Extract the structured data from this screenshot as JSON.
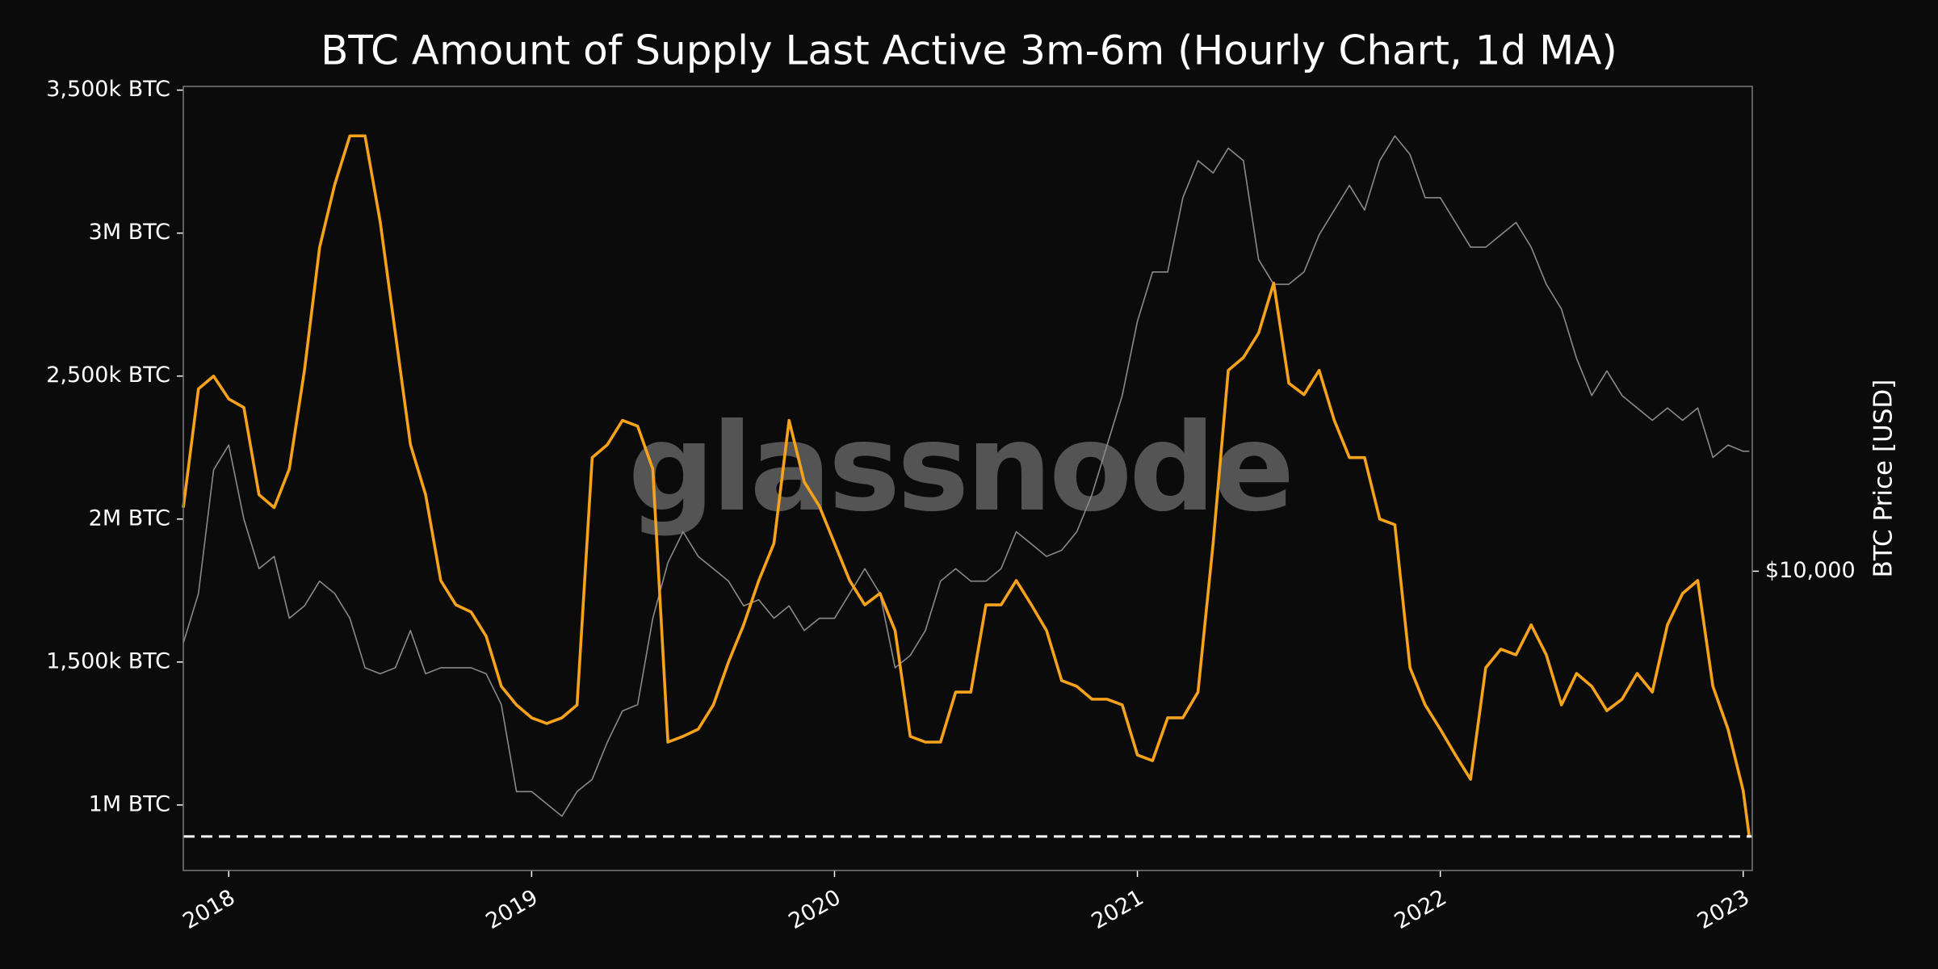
{
  "chart_data": {
    "type": "line",
    "title": "BTC Amount of Supply Last Active 3m-6m (Hourly Chart, 1d MA)",
    "watermark": "glassnode",
    "x": [
      2017.85,
      2017.9,
      2017.95,
      2018,
      2018.05,
      2018.1,
      2018.15,
      2018.2,
      2018.25,
      2018.3,
      2018.35,
      2018.4,
      2018.45,
      2018.5,
      2018.55,
      2018.6,
      2018.65,
      2018.7,
      2018.75,
      2018.8,
      2018.85,
      2018.9,
      2018.95,
      2019,
      2019.05,
      2019.1,
      2019.15,
      2019.2,
      2019.25,
      2019.3,
      2019.35,
      2019.4,
      2019.45,
      2019.5,
      2019.55,
      2019.6,
      2019.65,
      2019.7,
      2019.75,
      2019.8,
      2019.85,
      2019.9,
      2019.95,
      2020,
      2020.05,
      2020.1,
      2020.15,
      2020.2,
      2020.25,
      2020.3,
      2020.35,
      2020.4,
      2020.45,
      2020.5,
      2020.55,
      2020.6,
      2020.65,
      2020.7,
      2020.75,
      2020.8,
      2020.85,
      2020.9,
      2020.95,
      2021,
      2021.05,
      2021.1,
      2021.15,
      2021.2,
      2021.25,
      2021.3,
      2021.35,
      2021.4,
      2021.45,
      2021.5,
      2021.55,
      2021.6,
      2021.65,
      2021.7,
      2021.75,
      2021.8,
      2021.85,
      2021.9,
      2021.95,
      2022,
      2022.05,
      2022.1,
      2022.15,
      2022.2,
      2022.25,
      2022.3,
      2022.35,
      2022.4,
      2022.45,
      2022.5,
      2022.55,
      2022.6,
      2022.65,
      2022.7,
      2022.75,
      2022.8,
      2022.85,
      2022.9,
      2022.95,
      2023,
      2023.02
    ],
    "xlim": [
      2017.85,
      2023.03
    ],
    "xticks": [
      2018,
      2019,
      2020,
      2021,
      2022,
      2023
    ],
    "ylim": [
      771000,
      3513000
    ],
    "yticks": [
      {
        "value": 1000000,
        "label": "1M BTC"
      },
      {
        "value": 1500000,
        "label": "1,500k BTC"
      },
      {
        "value": 2000000,
        "label": "2M BTC"
      },
      {
        "value": 2500000,
        "label": "2,500k BTC"
      },
      {
        "value": 3000000,
        "label": "3M BTC"
      },
      {
        "value": 3500000,
        "label": "3,500k BTC"
      }
    ],
    "y2lim": [
      2745,
      81200
    ],
    "y2scale": "log",
    "y2ticks": [
      {
        "value": 10000,
        "label": "$10,000"
      }
    ],
    "y2label": "BTC Price [USD]",
    "series": [
      {
        "color": "#8a8a8a",
        "axis": "y2",
        "values": [
          7330,
          9080,
          15490,
          17250,
          12520,
          10110,
          10660,
          8160,
          8610,
          9580,
          9080,
          8160,
          6590,
          6420,
          6590,
          7740,
          6420,
          6590,
          6590,
          6590,
          6420,
          5620,
          3860,
          3860,
          3660,
          3470,
          3860,
          4070,
          4780,
          5470,
          5620,
          8160,
          10380,
          11860,
          10660,
          10110,
          9580,
          8610,
          8840,
          8160,
          8610,
          7740,
          8160,
          8160,
          9080,
          10110,
          9080,
          6590,
          6950,
          7740,
          9580,
          10110,
          9580,
          9580,
          10110,
          11860,
          11250,
          10660,
          10950,
          11860,
          13930,
          17250,
          21360,
          29430,
          36430,
          36430,
          50210,
          58930,
          55870,
          62170,
          58930,
          38430,
          34540,
          34540,
          36430,
          42770,
          47590,
          52960,
          47590,
          58930,
          65570,
          60530,
          50210,
          50210,
          45120,
          40550,
          40550,
          42770,
          45120,
          40550,
          34540,
          31040,
          25060,
          21360,
          23760,
          21360,
          20240,
          19190,
          20240,
          19190,
          20240,
          16350,
          17250,
          16790,
          16790
        ]
      },
      {
        "color": "#f7a21b",
        "values": [
          2040000,
          2455000,
          2500000,
          2420000,
          2390000,
          2085000,
          2040000,
          2175000,
          2520000,
          2950000,
          3170000,
          3340000,
          3340000,
          3040000,
          2650000,
          2260000,
          2085000,
          1785000,
          1700000,
          1675000,
          1590000,
          1415000,
          1350000,
          1305000,
          1285000,
          1305000,
          1350000,
          2215000,
          2260000,
          2345000,
          2325000,
          2175000,
          1220000,
          1240000,
          1265000,
          1350000,
          1500000,
          1630000,
          1785000,
          1915000,
          2345000,
          2130000,
          2045000,
          1915000,
          1785000,
          1700000,
          1740000,
          1610000,
          1240000,
          1220000,
          1220000,
          1395000,
          1395000,
          1700000,
          1700000,
          1785000,
          1700000,
          1610000,
          1435000,
          1415000,
          1370000,
          1370000,
          1350000,
          1175000,
          1155000,
          1305000,
          1305000,
          1395000,
          1915000,
          2520000,
          2565000,
          2650000,
          2825000,
          2475000,
          2435000,
          2520000,
          2345000,
          2215000,
          2215000,
          2000000,
          1980000,
          1480000,
          1350000,
          1265000,
          1175000,
          1090000,
          1480000,
          1545000,
          1525000,
          1630000,
          1525000,
          1350000,
          1460000,
          1415000,
          1330000,
          1370000,
          1460000,
          1395000,
          1630000,
          1740000,
          1785000,
          1415000,
          1265000,
          1050000,
          890000
        ]
      }
    ]
  }
}
